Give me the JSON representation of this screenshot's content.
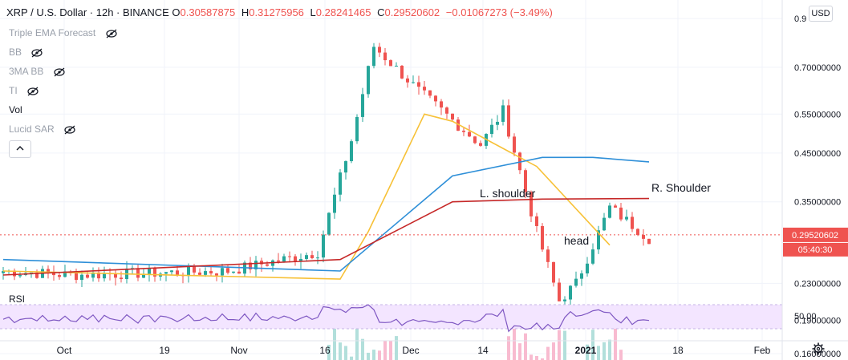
{
  "header": {
    "symbol": "XRP / U.S. Dollar · 12h · BINANCE",
    "open_label": "O",
    "open": "0.30587875",
    "high_label": "H",
    "high": "0.31275956",
    "low_label": "L",
    "low": "0.28241465",
    "close_label": "C",
    "close": "0.29520602",
    "change": "−0.01067273 (−3.49%)"
  },
  "indicators": [
    {
      "label": "Triple EMA Forecast",
      "icon": "eye-crossed-icon"
    },
    {
      "label": "BB",
      "icon": "eye-crossed-icon"
    },
    {
      "label": "3MA BB",
      "icon": "eye-crossed-icon"
    },
    {
      "label": "TI",
      "icon": "eye-crossed-icon"
    },
    {
      "label": "Vol",
      "icon": ""
    },
    {
      "label": "Lucid SAR",
      "icon": "eye-crossed-icon"
    }
  ],
  "controls": {
    "currency": "USD",
    "collapse_icon": "chevron-up-icon",
    "settings_icon": "gear-icon"
  },
  "price_axis": {
    "ticks": [
      "0.9",
      "0.70000000",
      "0.55000000",
      "0.45000000",
      "0.35000000",
      "0.23000000",
      "0.19000000",
      "0.16000000"
    ],
    "current_price": "0.29520602",
    "countdown": "05:40:30"
  },
  "time_axis": {
    "labels": [
      "Oct",
      "19",
      "Nov",
      "16",
      "Dec",
      "14",
      "2021",
      "18",
      "Feb"
    ]
  },
  "annotations": [
    "L. shoulder",
    "head",
    "R. Shoulder"
  ],
  "rsi": {
    "label": "RSI",
    "tick": "50.00"
  },
  "colors": {
    "up": "#26a69a",
    "down": "#ef5350",
    "ema_orange": "#f7c137",
    "ema_blue": "#2e8fd8",
    "ema_red": "#c62828",
    "rsi_line": "#7e57c2",
    "rsi_band": "#f3e5ff",
    "vol_up": "#b2dfdb",
    "vol_down": "#f8bbd0",
    "price_label_bg": "#ef5350"
  },
  "chart_data": {
    "type": "candlestick",
    "x_range": [
      "2020-09-19",
      "2021-02-08"
    ],
    "y_scale": "log",
    "ylim": [
      0.145,
      0.95
    ],
    "key_points": [
      {
        "date": "2020-09-19",
        "price": 0.245
      },
      {
        "date": "2020-10-01",
        "price": 0.24
      },
      {
        "date": "2020-11-01",
        "price": 0.245
      },
      {
        "date": "2020-11-14",
        "price": 0.27
      },
      {
        "date": "2020-11-21",
        "price": 0.48
      },
      {
        "date": "2020-11-24",
        "price": 0.78
      },
      {
        "date": "2020-12-01",
        "price": 0.62
      },
      {
        "date": "2020-12-14",
        "price": 0.47
      },
      {
        "date": "2020-12-18",
        "price": 0.56
      },
      {
        "date": "2020-12-22",
        "price": 0.3
      },
      {
        "date": "2020-12-29",
        "price": 0.21
      },
      {
        "date": "2021-01-04",
        "price": 0.23
      },
      {
        "date": "2021-01-08",
        "price": 0.34
      },
      {
        "date": "2021-01-12",
        "price": 0.29
      }
    ],
    "series": [
      {
        "name": "EMA orange",
        "points": [
          [
            0,
            0.245
          ],
          [
            60,
            0.235
          ],
          [
            65,
            0.3
          ],
          [
            75,
            0.55
          ],
          [
            80,
            0.53
          ],
          [
            95,
            0.42
          ],
          [
            108,
            0.28
          ]
        ]
      },
      {
        "name": "EMA blue",
        "points": [
          [
            0,
            0.26
          ],
          [
            60,
            0.245
          ],
          [
            80,
            0.4
          ],
          [
            96,
            0.44
          ],
          [
            105,
            0.44
          ],
          [
            115,
            0.43
          ]
        ]
      },
      {
        "name": "EMA red",
        "points": [
          [
            0,
            0.24
          ],
          [
            60,
            0.26
          ],
          [
            80,
            0.35
          ],
          [
            96,
            0.355
          ],
          [
            115,
            0.356
          ]
        ]
      }
    ]
  }
}
